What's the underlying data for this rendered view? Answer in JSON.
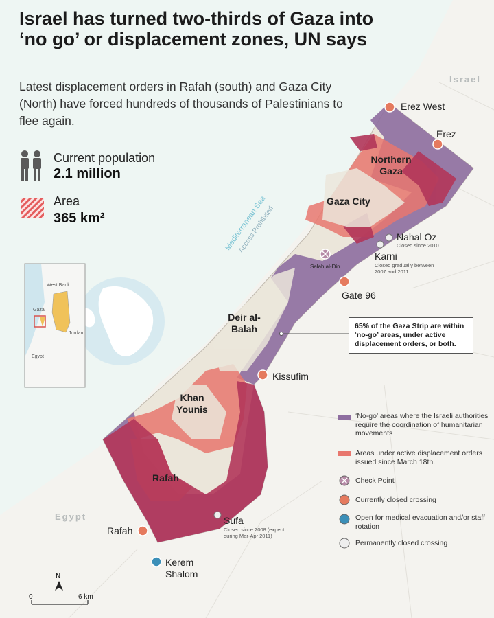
{
  "title": "Israel has turned two-thirds of Gaza into ‘no go’ or displacement zones, UN says",
  "subtitle": "Latest displacement orders in Rafah (south) and Gaza City (North) have forced hundreds of thousands of Palestinians to flee again.",
  "stats": {
    "population_label": "Current population",
    "population_value": "2.1 million",
    "area_label": "Area",
    "area_value": "365 km²"
  },
  "sea": {
    "name": "Mediterranean Sea",
    "note": "Access Prohibited"
  },
  "countries": {
    "israel": "Israel",
    "egypt": "Egypt"
  },
  "cities": {
    "northern_gaza": "Northern Gaza",
    "gaza_city": "Gaza City",
    "deir_al_balah": "Deir al-Balah",
    "khan_younis": "Khan Younis",
    "rafah": "Rafah"
  },
  "crossings": {
    "erez_west": "Erez West",
    "erez": "Erez",
    "nahal_oz": "Nahal Oz",
    "nahal_oz_note": "Closed since 2010",
    "karni": "Karni",
    "karni_note": "Closed gradually between 2007 and 2011",
    "salah_al_din": "Salah al-Din",
    "gate_96": "Gate 96",
    "kissufim": "Kissufim",
    "sufa": "Sufa",
    "sufa_note": "Closed since 2008 (expect during Mar-Apr 2011)",
    "rafah": "Rafah",
    "kerem_shalom": "Kerem Shalom"
  },
  "callout": "65% of the Gaza Strip are within ‘no-go’ areas, under active displacement orders, or both.",
  "legend": [
    {
      "key": "no-go",
      "label": "‘No-go’ areas where the Israeli authorities require the coordination of humanitarian movements",
      "color": "#8e6ea0"
    },
    {
      "key": "displacement",
      "label": "Areas under active displacement orders issued since March 18th.",
      "color": "#e8776e"
    },
    {
      "key": "checkpoint",
      "label": "Check Point",
      "color": "#b58aa6"
    },
    {
      "key": "closed",
      "label": "Currently closed crossing",
      "color": "#e57a5e"
    },
    {
      "key": "medical",
      "label": "Open for medical evacuation and/or staff rotation",
      "color": "#3b8fb8"
    },
    {
      "key": "permanent",
      "label": "Permanently closed crossing",
      "color": "#eeeeee"
    }
  ],
  "inset": {
    "west_bank": "West Bank",
    "gaza": "Gaza",
    "jordan": "Jordan",
    "egypt": "Egypt"
  },
  "scale": {
    "north": "N",
    "start": "0",
    "end": "6 km"
  },
  "colors": {
    "nogo": "#8e6ea0",
    "displacement": "#e8776e",
    "overlap": "#b2365a",
    "land": "#f3f1ec",
    "strip_land": "#ebe6da",
    "sea": "#eef6f3"
  }
}
